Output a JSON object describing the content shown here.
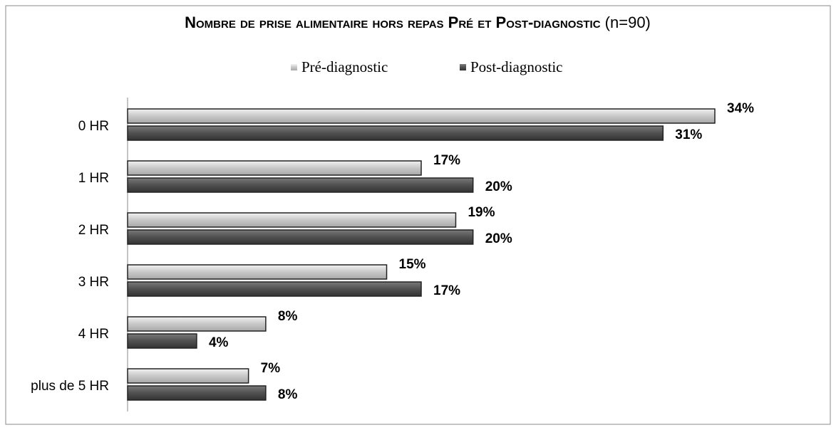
{
  "chart_data": {
    "type": "bar",
    "orientation": "horizontal",
    "title": "Nombre de prise alimentaire hors repas Pré et Post-diagnostic",
    "title_note": "(n=90)",
    "categories": [
      "0 HR",
      "1 HR",
      "2 HR",
      "3 HR",
      "4 HR",
      "plus de 5 HR"
    ],
    "series": [
      {
        "name": "Pré-diagnostic",
        "color": "#c8c8c8",
        "values": [
          34,
          17,
          19,
          15,
          8,
          7
        ],
        "value_labels": [
          "34%",
          "17%",
          "19%",
          "15%",
          "8%",
          "7%"
        ]
      },
      {
        "name": "Post-diagnostic",
        "color": "#505050",
        "values": [
          31,
          20,
          20,
          17,
          4,
          8
        ],
        "value_labels": [
          "31%",
          "20%",
          "20%",
          "17%",
          "4%",
          "8%"
        ]
      }
    ],
    "legend": "top"
  }
}
